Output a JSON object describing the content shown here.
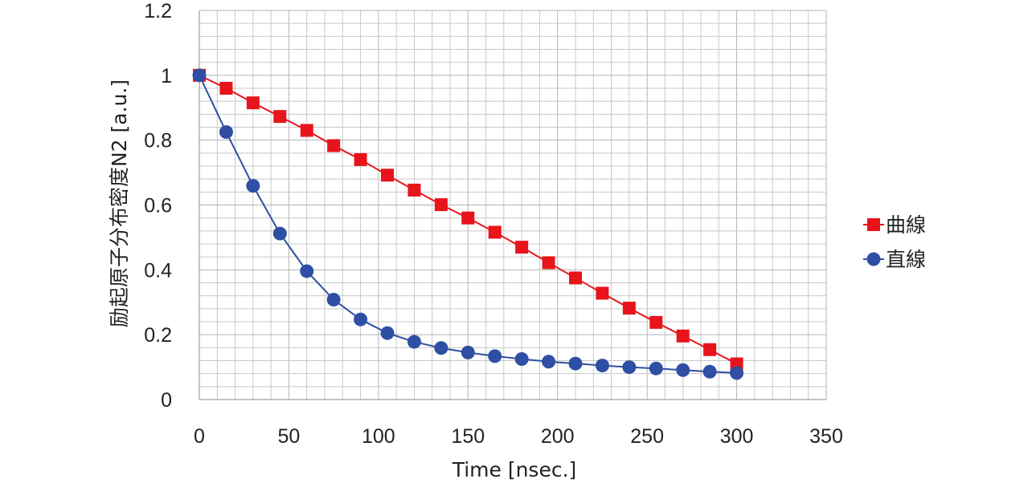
{
  "chart_data": {
    "type": "line",
    "title": "",
    "xlabel": "Time [nsec.]",
    "ylabel": "励起原子分布密度N2 [a.u.]",
    "xlim": [
      0,
      350
    ],
    "ylim": [
      0,
      1.2
    ],
    "x_ticks": [
      0,
      50,
      100,
      150,
      200,
      250,
      300,
      350
    ],
    "y_ticks": [
      0,
      0.2,
      0.4,
      0.6,
      0.8,
      1,
      1.2
    ],
    "x_tick_labels": [
      "0",
      "50",
      "100",
      "150",
      "200",
      "250",
      "300",
      "350"
    ],
    "y_tick_labels": [
      "0",
      "0.2",
      "0.4",
      "0.6",
      "0.8",
      "1",
      "1.2"
    ],
    "grid": true,
    "legend_position": "right",
    "x": [
      0,
      15,
      30,
      45,
      60,
      75,
      90,
      105,
      120,
      135,
      150,
      165,
      180,
      195,
      210,
      225,
      240,
      255,
      270,
      285,
      300
    ],
    "series": [
      {
        "name": "曲線",
        "marker": "square",
        "color": "#e8141b",
        "values": [
          1.0,
          0.96,
          0.915,
          0.873,
          0.83,
          0.783,
          0.74,
          0.692,
          0.646,
          0.601,
          0.56,
          0.516,
          0.47,
          0.422,
          0.375,
          0.328,
          0.282,
          0.238,
          0.196,
          0.154,
          0.11
        ]
      },
      {
        "name": "直線",
        "marker": "circle",
        "color": "#2e4fa3",
        "values": [
          1.0,
          0.825,
          0.659,
          0.512,
          0.396,
          0.308,
          0.247,
          0.205,
          0.178,
          0.159,
          0.145,
          0.134,
          0.125,
          0.117,
          0.111,
          0.105,
          0.1,
          0.096,
          0.091,
          0.086,
          0.082
        ]
      }
    ]
  }
}
